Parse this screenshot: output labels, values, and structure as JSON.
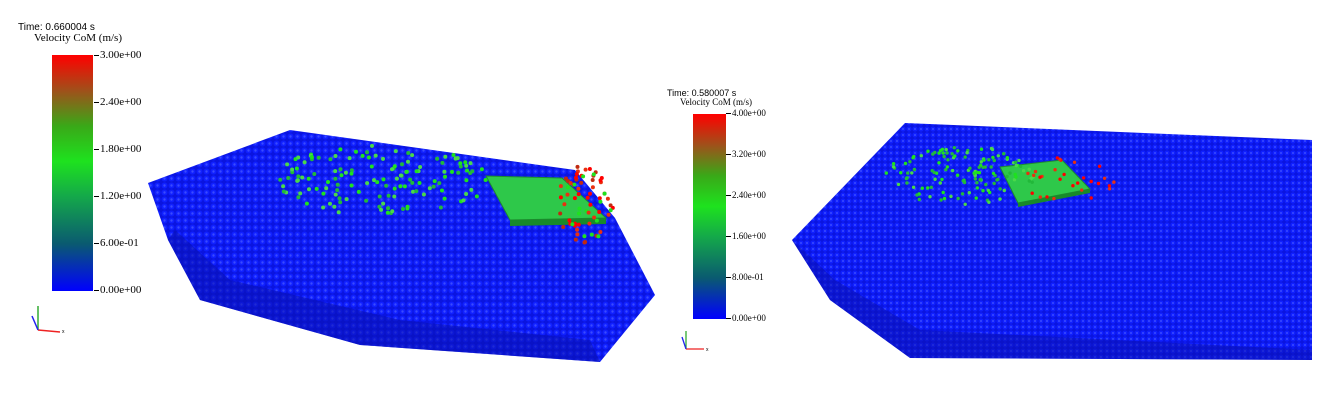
{
  "left_view": {
    "time_label": "Time: 0.660004 s",
    "colorbar": {
      "title": "Velocity CoM (m/s)",
      "ticks": [
        "3.00e+00",
        "2.40e+00",
        "1.80e+00",
        "1.20e+00",
        "6.00e-01",
        "0.00e+00"
      ],
      "range": [
        0,
        3
      ]
    }
  },
  "right_view": {
    "time_label": "Time: 0.580007 s",
    "colorbar": {
      "title": "Velocity CoM (m/s)",
      "ticks": [
        "4.00e+00",
        "3.20e+00",
        "2.40e+00",
        "1.60e+00",
        "8.00e-01",
        "0.00e+00"
      ],
      "range": [
        0,
        4
      ]
    }
  },
  "colors": {
    "low": "#0000ff",
    "mid": "#1ee21e",
    "high": "#ff0000",
    "plate": "#2ec84a"
  }
}
